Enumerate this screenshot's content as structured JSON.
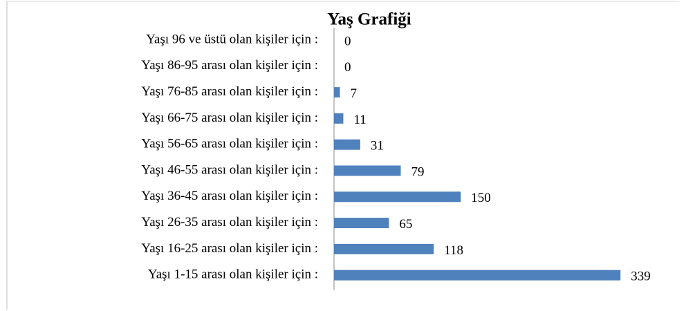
{
  "chart_data": {
    "type": "bar",
    "orientation": "horizontal",
    "title": "Yaş Grafiği",
    "categories": [
      "Yaşı 96 ve üstü olan kişiler için :",
      "Yaşı 86-95 arası olan kişiler için :",
      "Yaşı 76-85 arası olan kişiler için :",
      "Yaşı 66-75 arası olan kişiler için :",
      "Yaşı 56-65 arası olan kişiler için :",
      "Yaşı 46-55 arası olan kişiler için :",
      "Yaşı 36-45 arası olan kişiler için :",
      "Yaşı 26-35 arası olan kişiler için :",
      "Yaşı 16-25 arası olan kişiler için :",
      "Yaşı 1-15 arası olan kişiler için :"
    ],
    "values": [
      0,
      0,
      7,
      11,
      31,
      79,
      150,
      65,
      118,
      339
    ],
    "color": "#4f81bd"
  }
}
